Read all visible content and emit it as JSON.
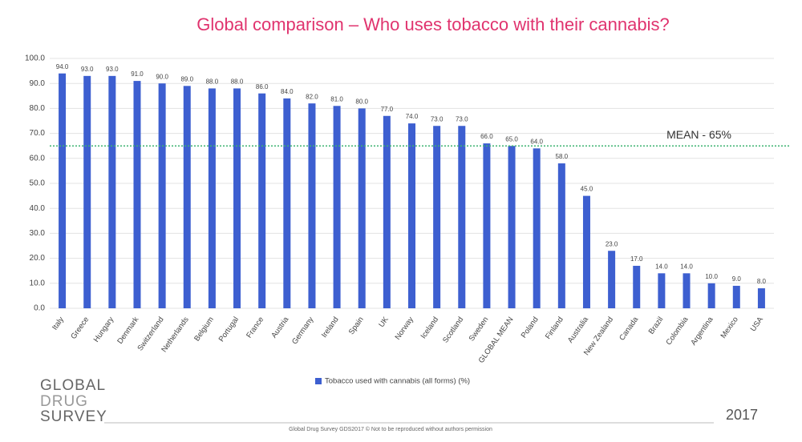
{
  "chart_data": {
    "type": "bar",
    "title": "Global comparison – Who uses tobacco with their cannabis?",
    "categories": [
      "Italy",
      "Greece",
      "Hungary",
      "Denmark",
      "Switzerland",
      "Netherlands",
      "Belgium",
      "Portugal",
      "France",
      "Austria",
      "Germany",
      "Ireland",
      "Spain",
      "UK",
      "Norway",
      "Iceland",
      "Scotland",
      "Sweden",
      "GLOBAL MEAN",
      "Poland",
      "Finland",
      "Australia",
      "New Zealand",
      "Canada",
      "Brazil",
      "Colombia",
      "Argentina",
      "Mexico",
      "USA"
    ],
    "series": [
      {
        "name": "Tobacco used with cannabis (all forms) (%)",
        "color": "#3d5fd0",
        "values": [
          94,
          93,
          93,
          91,
          90,
          89,
          88,
          88,
          86,
          84,
          82,
          81,
          80,
          77,
          74,
          73,
          73,
          66,
          65,
          64,
          58,
          45,
          23,
          17,
          14,
          14,
          10,
          9,
          8
        ],
        "value_labels": [
          "94.0",
          "93.0",
          "93.0",
          "91.0",
          "90.0",
          "89.0",
          "88.0",
          "88.0",
          "86.0",
          "84.0",
          "82.0",
          "81.0",
          "80.0",
          "77.0",
          "74.0",
          "73.0",
          "73.0",
          "66.0",
          "65.0",
          "64.0",
          "58.0",
          "45.0",
          "23.0",
          "17.0",
          "14.0",
          "14.0",
          "10.0",
          "9.0",
          "8.0"
        ]
      }
    ],
    "ylim": [
      0,
      100
    ],
    "yticks": [
      {
        "value": 0,
        "label": "0.0"
      },
      {
        "value": 10,
        "label": "10.0"
      },
      {
        "value": 20,
        "label": "20.0"
      },
      {
        "value": 30,
        "label": "30.0"
      },
      {
        "value": 40,
        "label": "40.0"
      },
      {
        "value": 50,
        "label": "50.0"
      },
      {
        "value": 60,
        "label": "60.0"
      },
      {
        "value": 70,
        "label": "70.0"
      },
      {
        "value": 80,
        "label": "80.0"
      },
      {
        "value": 90,
        "label": "90.0"
      },
      {
        "value": 100,
        "label": "100.0"
      }
    ],
    "grid": true,
    "reference_line": {
      "value": 65,
      "label": "MEAN - 65%",
      "color": "#3cb371"
    }
  },
  "branding": {
    "logo": [
      "GLOBAL",
      "DRUG",
      "SURVEY"
    ],
    "year": "2017",
    "footer": "Global Drug Survey GDS2017 © Not to be reproduced without authors permission"
  }
}
